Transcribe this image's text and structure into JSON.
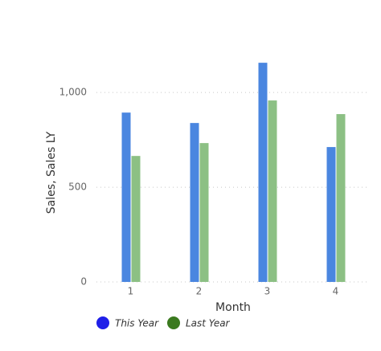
{
  "chart_data": {
    "type": "bar",
    "x_label": "Month",
    "y_label": "Sales, Sales LY",
    "categories": [
      "1",
      "2",
      "3",
      "4"
    ],
    "series": [
      {
        "name": "This Year",
        "color": "#4a86e0",
        "legend_color": "#1f1fe8",
        "values": [
          894,
          839,
          1157,
          712
        ]
      },
      {
        "name": "Last Year",
        "color": "#8cc084",
        "legend_color": "#3b7a1f",
        "values": [
          665,
          733,
          958,
          886
        ]
      }
    ],
    "ylim": [
      0,
      1200
    ],
    "yticks": [
      0,
      500,
      {
        "value": 1000,
        "label": "1,000"
      }
    ],
    "grid": true
  }
}
